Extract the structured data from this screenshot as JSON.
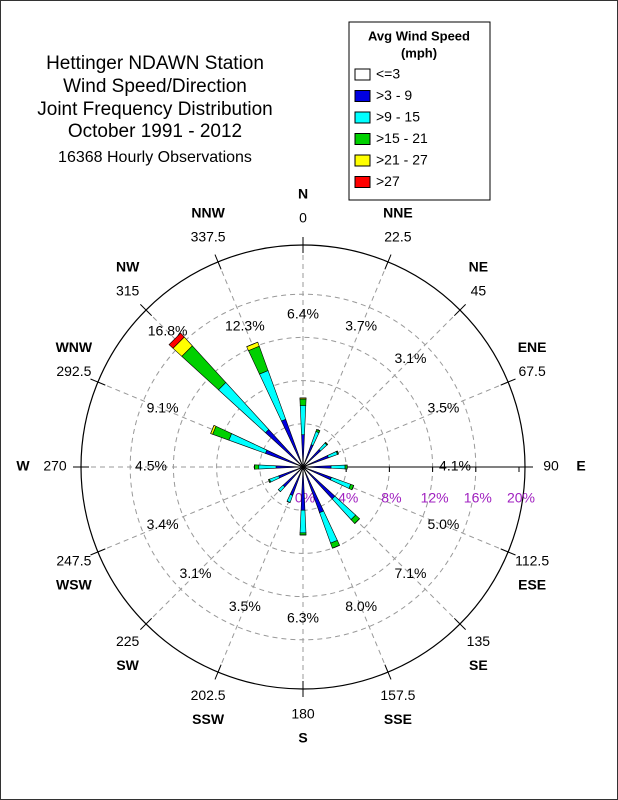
{
  "chart_data": {
    "type": "wind_rose",
    "title": [
      "Hettinger NDAWN Station",
      "Wind Speed/Direction",
      "Joint Frequency Distribution",
      "October 1991 - 2012"
    ],
    "subtitle": "16368 Hourly Observations",
    "legend_title": [
      "Avg Wind Speed",
      "(mph)"
    ],
    "legend": "upper right",
    "grid": true,
    "directions": [
      "N",
      "NNE",
      "NE",
      "ENE",
      "E",
      "ESE",
      "SE",
      "SSE",
      "S",
      "SSW",
      "SW",
      "WSW",
      "W",
      "WNW",
      "NW",
      "NNW"
    ],
    "angles": [
      0,
      22.5,
      45,
      67.5,
      90,
      112.5,
      135,
      157.5,
      180,
      202.5,
      225,
      247.5,
      270,
      292.5,
      315,
      337.5
    ],
    "total_labels": [
      "6.4%",
      "3.7%",
      "3.1%",
      "3.5%",
      "4.1%",
      "5.0%",
      "7.1%",
      "8.0%",
      "6.3%",
      "3.5%",
      "3.1%",
      "3.4%",
      "4.5%",
      "9.1%",
      "16.8%",
      "12.3%"
    ],
    "series": [
      {
        "name": "<=3",
        "color": "#ffffff",
        "values": [
          0.2,
          0.2,
          0.2,
          0.2,
          0.2,
          0.2,
          0.2,
          0.2,
          0.2,
          0.2,
          0.2,
          0.2,
          0.2,
          0.2,
          0.2,
          0.2
        ]
      },
      {
        "name": ">3 - 9",
        "color": "#0000e0",
        "values": [
          2.8,
          2.0,
          2.0,
          2.3,
          2.4,
          2.6,
          3.8,
          4.3,
          3.8,
          2.6,
          2.3,
          2.2,
          2.3,
          3.5,
          4.5,
          4.5
        ]
      },
      {
        "name": ">9 - 15",
        "color": "#00ffff",
        "values": [
          2.7,
          1.3,
          0.8,
          0.9,
          1.3,
          1.9,
          2.6,
          3.0,
          2.1,
          0.7,
          0.6,
          0.9,
          1.6,
          3.6,
          5.9,
          4.8
        ]
      },
      {
        "name": ">15 - 21",
        "color": "#00d000",
        "values": [
          0.6,
          0.2,
          0.1,
          0.1,
          0.2,
          0.3,
          0.5,
          0.5,
          0.2,
          0,
          0,
          0.1,
          0.4,
          1.6,
          4.6,
          2.4
        ]
      },
      {
        "name": ">21 - 27",
        "color": "#ffff00",
        "values": [
          0.1,
          0,
          0,
          0,
          0,
          0,
          0,
          0,
          0,
          0,
          0,
          0,
          0,
          0.2,
          1.1,
          0.4
        ]
      },
      {
        "name": ">27",
        "color": "#ff0000",
        "values": [
          0,
          0,
          0,
          0,
          0,
          0,
          0,
          0,
          0,
          0,
          0,
          0,
          0,
          0,
          0.5,
          0
        ]
      }
    ],
    "rlim": [
      0,
      20
    ],
    "rticks": [
      {
        "value": 0,
        "label": "0%"
      },
      {
        "value": 4,
        "label": "4%"
      },
      {
        "value": 8,
        "label": "8%"
      },
      {
        "value": 12,
        "label": "12%"
      },
      {
        "value": 16,
        "label": "16%"
      },
      {
        "value": 20,
        "label": "20%"
      }
    ]
  }
}
